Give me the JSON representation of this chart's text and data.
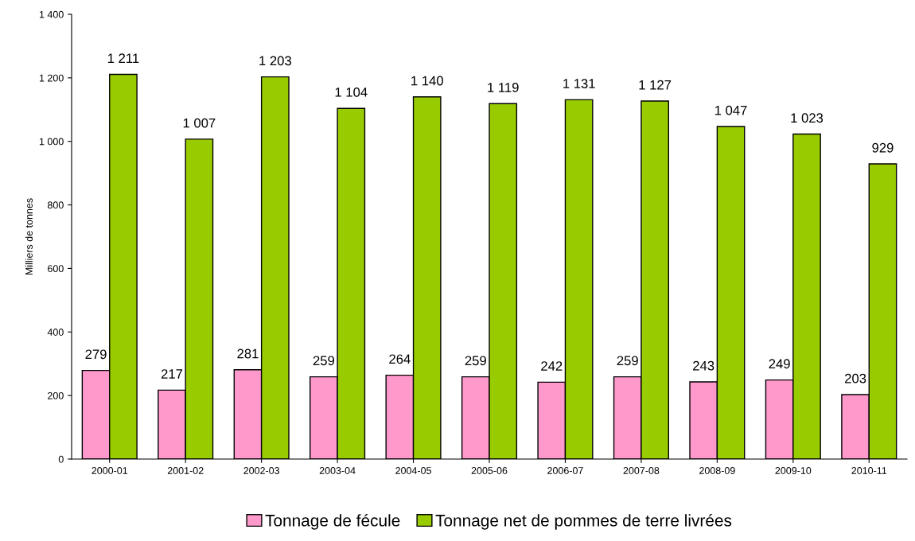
{
  "chart_data": {
    "type": "bar",
    "ylabel": "Milliers de tonnes",
    "categories": [
      "2000-01",
      "2001-02",
      "2002-03",
      "2003-04",
      "2004-05",
      "2005-06",
      "2006-07",
      "2007-08",
      "2008-09",
      "2009-10",
      "2010-11"
    ],
    "series": [
      {
        "name": "Tonnage de fécule",
        "color": "#ff99cc",
        "values": [
          279,
          217,
          281,
          259,
          264,
          259,
          242,
          259,
          243,
          249,
          203
        ],
        "value_labels": [
          "279",
          "217",
          "281",
          "259",
          "264",
          "259",
          "242",
          "259",
          "243",
          "249",
          "203"
        ]
      },
      {
        "name": "Tonnage net de pommes de terre livrées",
        "color": "#99cc00",
        "values": [
          1211,
          1007,
          1203,
          1104,
          1140,
          1119,
          1131,
          1127,
          1047,
          1023,
          929
        ],
        "value_labels": [
          "1 211",
          "1 007",
          "1 203",
          "1 104",
          "1 140",
          "1 119",
          "1 131",
          "1 127",
          "1 047",
          "1 023",
          "929"
        ]
      }
    ],
    "ylim": [
      0,
      1400
    ],
    "yticks": [
      0,
      200,
      400,
      600,
      800,
      {
        "value": 1000,
        "label": "1 000"
      },
      {
        "value": 1200,
        "label": "1 200"
      },
      {
        "value": 1400,
        "label": "1 400"
      }
    ],
    "grid": false,
    "legend": "bottom"
  }
}
